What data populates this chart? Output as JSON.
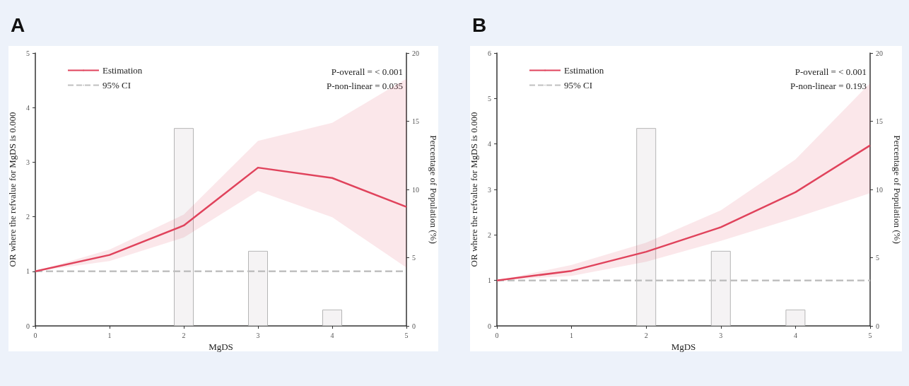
{
  "chart_data": [
    {
      "type": "line",
      "title": "A",
      "xlabel": "MgDS",
      "ylabel": "OR where the refvalue for MgDS is 0.000",
      "y2label": "Percentage of Population (%)",
      "x": [
        0,
        1,
        2,
        3,
        4,
        5
      ],
      "xlim": [
        0,
        5
      ],
      "xticks": [
        0,
        1,
        2,
        3,
        4,
        5
      ],
      "ylim": [
        0,
        5
      ],
      "yticks": [
        0,
        1,
        2,
        3,
        4,
        5
      ],
      "y2lim": [
        0,
        20
      ],
      "y2ticks": [
        0,
        5,
        10,
        15,
        20
      ],
      "grid": false,
      "legend": "top left",
      "marker": "none",
      "annotations": [
        "P-overall = < 0.001",
        "P-non-linear = 0.035"
      ],
      "series": [
        {
          "name": "Estimation",
          "color": "#e0435c",
          "line_style": "solid",
          "values": [
            1,
            1.3,
            1.84,
            2.9,
            2.71,
            2.18
          ],
          "lower": [
            1,
            1.19,
            1.62,
            2.47,
            1.99,
            1.07
          ],
          "upper": [
            1,
            1.4,
            2.04,
            3.39,
            3.72,
            4.53
          ]
        },
        {
          "name": "95% CI",
          "color": "#c0c0c0",
          "line_style": "dashed",
          "values": [
            1,
            1,
            1,
            1,
            1,
            1
          ]
        },
        {
          "type": "bar",
          "axis": "y2",
          "color": "#f5f3f4",
          "x": [
            2,
            3,
            4
          ],
          "values": [
            14.5,
            5.5,
            1.2
          ]
        }
      ]
    },
    {
      "type": "line",
      "title": "B",
      "xlabel": "MgDS",
      "ylabel": "OR where the refvalue for MgDS is 0.000",
      "y2label": "Percentage of Population (%)",
      "x": [
        0,
        1,
        2,
        3,
        4,
        5
      ],
      "xlim": [
        0,
        5
      ],
      "xticks": [
        0,
        1,
        2,
        3,
        4,
        5
      ],
      "ylim": [
        0,
        6
      ],
      "yticks": [
        0,
        1,
        2,
        3,
        4,
        5,
        6
      ],
      "y2lim": [
        0,
        20
      ],
      "y2ticks": [
        0,
        5,
        10,
        15,
        20
      ],
      "grid": false,
      "legend": "top left",
      "marker": "none",
      "annotations": [
        "P-overall = < 0.001",
        "P-non-linear = 0.193"
      ],
      "series": [
        {
          "name": "Estimation",
          "color": "#e0435c",
          "line_style": "solid",
          "values": [
            1,
            1.21,
            1.63,
            2.17,
            2.94,
            3.97
          ],
          "lower": [
            1,
            1.1,
            1.41,
            1.87,
            2.38,
            2.92
          ],
          "upper": [
            1,
            1.34,
            1.83,
            2.54,
            3.66,
            5.34
          ]
        },
        {
          "name": "95% CI",
          "color": "#c0c0c0",
          "line_style": "dashed",
          "values": [
            1,
            1,
            1,
            1,
            1,
            1
          ]
        },
        {
          "type": "bar",
          "axis": "y2",
          "color": "#f5f3f4",
          "x": [
            2,
            3,
            4
          ],
          "values": [
            14.5,
            5.5,
            1.2
          ]
        }
      ]
    }
  ]
}
